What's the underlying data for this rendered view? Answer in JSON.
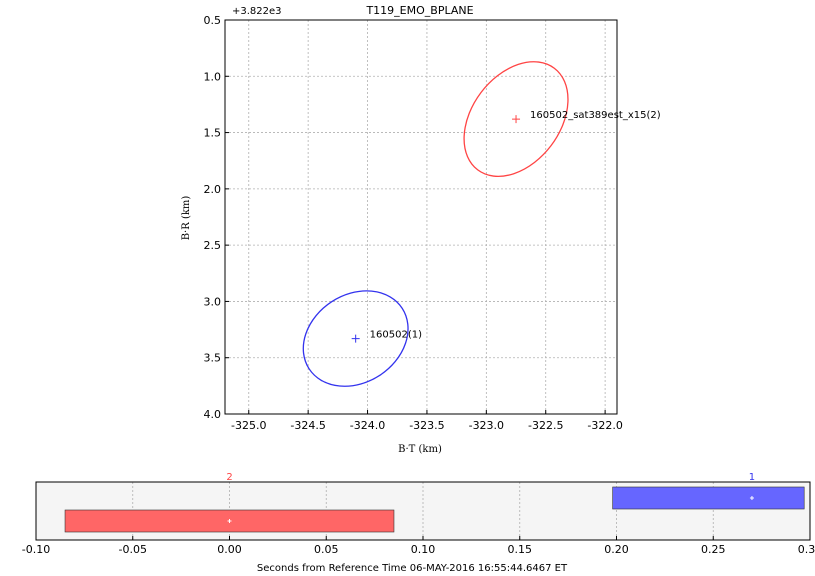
{
  "chart_data": [
    {
      "type": "scatter",
      "title": "T119_EMO_BPLANE",
      "offset_label": "+3.822e3",
      "xlabel": "B·T (km)",
      "ylabel": "B·R (km)",
      "xlim": [
        -325.2,
        -321.9
      ],
      "ylim": [
        4.0,
        0.5
      ],
      "xticks": [
        "-325.0",
        "-324.5",
        "-324.0",
        "-323.5",
        "-323.0",
        "-322.5",
        "-322.0"
      ],
      "xtick_values": [
        -325.0,
        -324.5,
        -324.0,
        -323.5,
        -323.0,
        -322.5,
        -322.0
      ],
      "yticks": [
        "0.5",
        "1.0",
        "1.5",
        "2.0",
        "2.5",
        "3.0",
        "3.5",
        "4.0"
      ],
      "ytick_values": [
        0.5,
        1.0,
        1.5,
        2.0,
        2.5,
        3.0,
        3.5,
        4.0
      ],
      "grid": true,
      "series": [
        {
          "name": "160502_sat389est_x15(2)",
          "color": "#ff4444",
          "center": [
            -322.75,
            1.38
          ],
          "ellipse": {
            "semi_major": 0.55,
            "semi_minor": 0.38,
            "angle_deg": -53
          }
        },
        {
          "name": "160502(1)",
          "color": "#3333ee",
          "center": [
            -324.1,
            3.33
          ],
          "ellipse": {
            "semi_major": 0.48,
            "semi_minor": 0.38,
            "angle_deg": -33
          }
        }
      ]
    },
    {
      "type": "bar",
      "orientation": "horizontal-span",
      "xlabel": "Seconds from Reference Time 06-MAY-2016 16:55:44.6467 ET",
      "xlim": [
        -0.1,
        0.3
      ],
      "xticks": [
        "-0.10",
        "-0.05",
        "0.00",
        "0.05",
        "0.10",
        "0.15",
        "0.20",
        "0.25",
        "0.30"
      ],
      "xtick_values": [
        -0.1,
        -0.05,
        0.0,
        0.05,
        0.1,
        0.15,
        0.2,
        0.25,
        0.3
      ],
      "grid": true,
      "bars": [
        {
          "label": "2",
          "color": "#ff6666",
          "label_color": "#ff4444",
          "start": -0.085,
          "end": 0.085,
          "mid": 0.0,
          "level": 0
        },
        {
          "label": "1",
          "color": "#6666ff",
          "label_color": "#3333ee",
          "start": 0.198,
          "end": 0.297,
          "mid": 0.27,
          "level": 1
        }
      ]
    }
  ]
}
